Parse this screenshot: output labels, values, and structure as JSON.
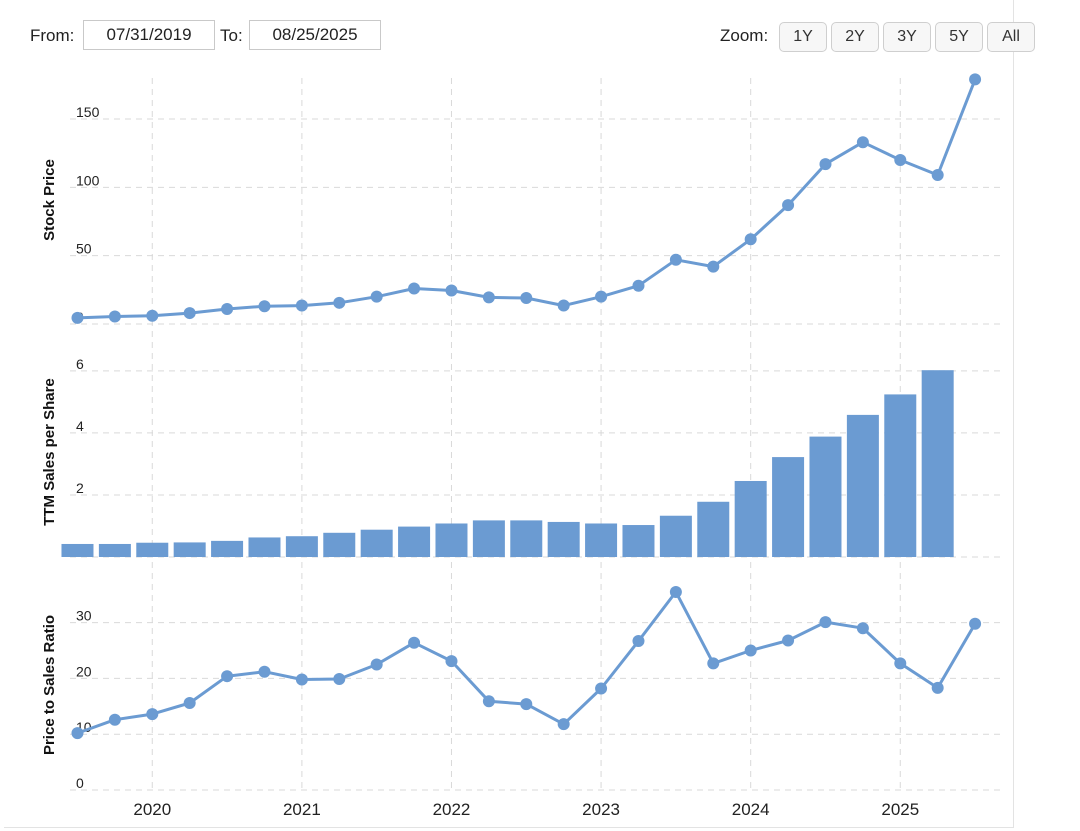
{
  "toolbar": {
    "from_label": "From:",
    "from_value": "07/31/2019",
    "to_label": "To:",
    "to_value": "08/25/2025",
    "zoom_label": "Zoom:",
    "zoom_buttons": [
      "1Y",
      "2Y",
      "3Y",
      "5Y",
      "All"
    ]
  },
  "colors": {
    "series": "#6b9bd2",
    "grid": "#d9d9d9"
  },
  "chart_data": [
    {
      "type": "line",
      "ylabel": "Stock Price",
      "ylim": [
        0,
        180
      ],
      "yticks": [
        0,
        50,
        100,
        150
      ],
      "x": [
        2019.5,
        2019.75,
        2020.0,
        2020.25,
        2020.5,
        2020.75,
        2021.0,
        2021.25,
        2021.5,
        2021.75,
        2022.0,
        2022.25,
        2022.5,
        2022.75,
        2023.0,
        2023.25,
        2023.5,
        2023.75,
        2024.0,
        2024.25,
        2024.5,
        2024.75,
        2025.0,
        2025.25,
        2025.5
      ],
      "values": [
        4.5,
        5.5,
        6,
        8,
        11,
        13,
        13.5,
        15.5,
        20,
        26,
        24.5,
        19.5,
        19,
        13.5,
        20,
        28,
        47,
        42,
        62,
        87,
        117,
        133,
        120,
        109,
        179
      ]
    },
    {
      "type": "bar",
      "ylabel": "TTM Sales per Share",
      "ylim": [
        0,
        6.8
      ],
      "yticks": [
        0,
        2,
        4,
        6
      ],
      "x": [
        2019.5,
        2019.75,
        2020.0,
        2020.25,
        2020.5,
        2020.75,
        2021.0,
        2021.25,
        2021.5,
        2021.75,
        2022.0,
        2022.25,
        2022.5,
        2022.75,
        2023.0,
        2023.25,
        2023.5,
        2023.75,
        2024.0,
        2024.25,
        2024.5,
        2024.75,
        2025.0,
        2025.25
      ],
      "values": [
        0.42,
        0.42,
        0.46,
        0.47,
        0.52,
        0.63,
        0.67,
        0.78,
        0.88,
        0.98,
        1.08,
        1.18,
        1.18,
        1.13,
        1.08,
        1.03,
        1.33,
        1.78,
        2.45,
        3.22,
        3.88,
        4.58,
        5.24,
        6.02
      ]
    },
    {
      "type": "line",
      "ylabel": "Price to Sales Ratio",
      "ylim": [
        0,
        38
      ],
      "yticks": [
        0,
        10,
        20,
        30
      ],
      "x": [
        2019.5,
        2019.75,
        2020.0,
        2020.25,
        2020.5,
        2020.75,
        2021.0,
        2021.25,
        2021.5,
        2021.75,
        2022.0,
        2022.25,
        2022.5,
        2022.75,
        2023.0,
        2023.25,
        2023.5,
        2023.75,
        2024.0,
        2024.25,
        2024.5,
        2024.75,
        2025.0,
        2025.25,
        2025.5
      ],
      "values": [
        10.2,
        12.6,
        13.6,
        15.6,
        20.4,
        21.2,
        19.8,
        19.9,
        22.5,
        26.4,
        23.1,
        15.9,
        15.4,
        11.8,
        18.2,
        26.7,
        35.5,
        22.7,
        25,
        26.8,
        30.1,
        29,
        22.7,
        18.3,
        29.8
      ]
    }
  ],
  "x_axis": {
    "tick_labels": [
      "2020",
      "2021",
      "2022",
      "2023",
      "2024",
      "2025"
    ],
    "tick_values": [
      2020,
      2021,
      2022,
      2023,
      2024,
      2025
    ],
    "range": [
      2019.45,
      2025.7
    ]
  }
}
